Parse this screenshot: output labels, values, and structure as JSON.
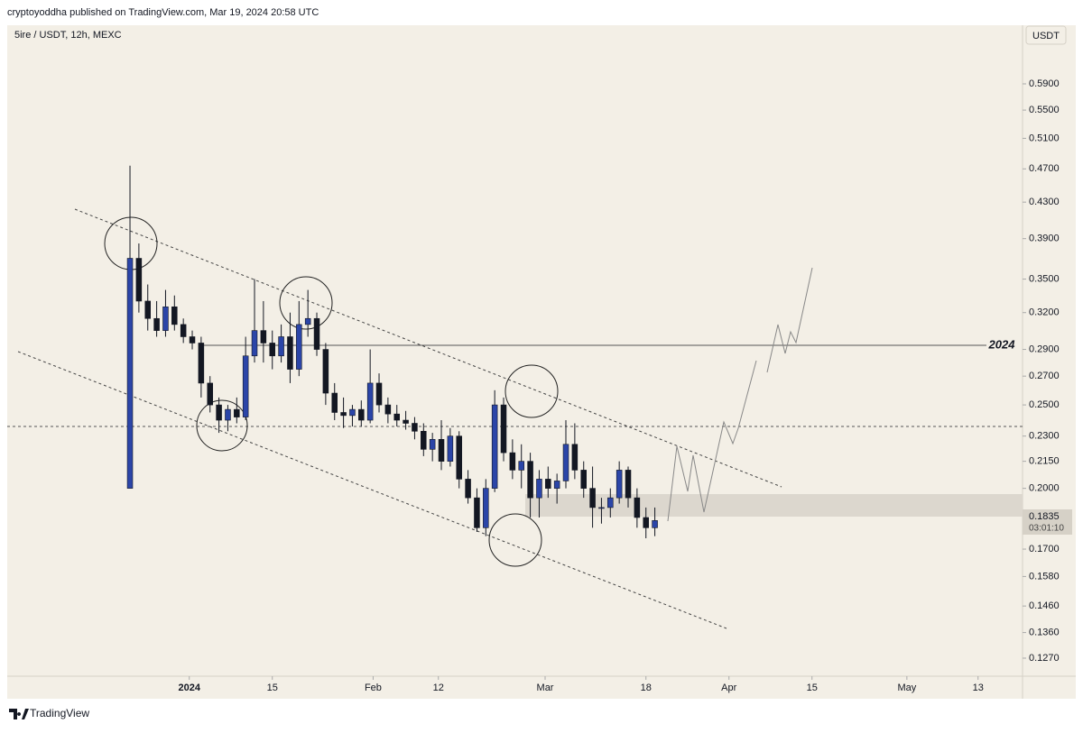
{
  "header": {
    "publisher": "cryptoyoddha published on TradingView.com, Mar 19, 2024 20:58 UTC"
  },
  "footer": {
    "brand": "TradingView"
  },
  "chart_data": {
    "type": "candlestick",
    "symbol": "5ire / USDT, 12h, MEXC",
    "currency": "USDT",
    "log_scale": true,
    "up_color": "#2b45a8",
    "down_color": "#131722",
    "x": [
      -10,
      -8.5,
      -7,
      -5.5,
      -4,
      -2.5,
      -1,
      0.5,
      2,
      3.5,
      5,
      6.5,
      8,
      9.5,
      11,
      12.5,
      14,
      15.5,
      17,
      18.5,
      20,
      21.5,
      23,
      24.5,
      26,
      27.5,
      29,
      30.5,
      32,
      33.5,
      35,
      36.5,
      38,
      39.5,
      41,
      42.5,
      44,
      45.5,
      47,
      48.5,
      50,
      51.5,
      53,
      54.5,
      56,
      57.5,
      59,
      60.5,
      62,
      63.5,
      65,
      66.5,
      68,
      69.5,
      71,
      72.5,
      74,
      75.5,
      77,
      78.5
    ],
    "open": [
      0.2,
      0.37,
      0.33,
      0.315,
      0.305,
      0.325,
      0.31,
      0.3,
      0.295,
      0.265,
      0.25,
      0.24,
      0.247,
      0.242,
      0.285,
      0.305,
      0.295,
      0.285,
      0.3,
      0.275,
      0.31,
      0.315,
      0.29,
      0.258,
      0.245,
      0.243,
      0.247,
      0.24,
      0.265,
      0.25,
      0.244,
      0.24,
      0.238,
      0.233,
      0.222,
      0.228,
      0.215,
      0.23,
      0.205,
      0.195,
      0.18,
      0.2,
      0.25,
      0.22,
      0.21,
      0.215,
      0.195,
      0.205,
      0.2,
      0.204,
      0.225,
      0.21,
      0.2,
      0.19,
      0.19,
      0.195,
      0.21,
      0.195,
      0.185,
      0.18
    ],
    "high": [
      0.474,
      0.385,
      0.345,
      0.33,
      0.34,
      0.335,
      0.315,
      0.305,
      0.3,
      0.27,
      0.255,
      0.25,
      0.255,
      0.3,
      0.35,
      0.33,
      0.305,
      0.31,
      0.32,
      0.33,
      0.34,
      0.32,
      0.295,
      0.265,
      0.255,
      0.25,
      0.253,
      0.29,
      0.272,
      0.255,
      0.25,
      0.246,
      0.242,
      0.238,
      0.232,
      0.24,
      0.235,
      0.233,
      0.21,
      0.2,
      0.205,
      0.26,
      0.255,
      0.228,
      0.225,
      0.22,
      0.21,
      0.212,
      0.208,
      0.24,
      0.238,
      0.215,
      0.212,
      0.195,
      0.2,
      0.215,
      0.212,
      0.2,
      0.19,
      0.19
    ],
    "low": [
      0.2,
      0.32,
      0.305,
      0.3,
      0.3,
      0.305,
      0.295,
      0.29,
      0.255,
      0.245,
      0.232,
      0.233,
      0.238,
      0.24,
      0.28,
      0.28,
      0.275,
      0.28,
      0.265,
      0.27,
      0.3,
      0.285,
      0.25,
      0.24,
      0.235,
      0.236,
      0.236,
      0.238,
      0.245,
      0.238,
      0.236,
      0.234,
      0.228,
      0.218,
      0.215,
      0.21,
      0.212,
      0.2,
      0.192,
      0.178,
      0.176,
      0.198,
      0.215,
      0.205,
      0.2,
      0.185,
      0.185,
      0.195,
      0.192,
      0.2,
      0.205,
      0.195,
      0.18,
      0.182,
      0.185,
      0.192,
      0.19,
      0.18,
      0.175,
      0.176
    ],
    "close": [
      0.37,
      0.33,
      0.315,
      0.305,
      0.325,
      0.31,
      0.3,
      0.295,
      0.265,
      0.25,
      0.24,
      0.247,
      0.242,
      0.285,
      0.305,
      0.295,
      0.285,
      0.3,
      0.275,
      0.31,
      0.315,
      0.29,
      0.258,
      0.245,
      0.243,
      0.247,
      0.24,
      0.265,
      0.25,
      0.244,
      0.24,
      0.238,
      0.233,
      0.222,
      0.228,
      0.215,
      0.23,
      0.205,
      0.195,
      0.18,
      0.2,
      0.25,
      0.22,
      0.21,
      0.215,
      0.195,
      0.205,
      0.2,
      0.204,
      0.225,
      0.21,
      0.2,
      0.19,
      0.19,
      0.195,
      0.21,
      0.195,
      0.185,
      0.18,
      0.1835
    ],
    "xlim": [
      -30.7,
      140.5
    ],
    "xticks": [
      {
        "value": 0,
        "label": "2024"
      },
      {
        "value": 14,
        "label": "15"
      },
      {
        "value": 31,
        "label": "Feb"
      },
      {
        "value": 42,
        "label": "12"
      },
      {
        "value": 60,
        "label": "Mar"
      },
      {
        "value": 77,
        "label": "18"
      },
      {
        "value": 91,
        "label": "Apr"
      },
      {
        "value": 105,
        "label": "15"
      },
      {
        "value": 121,
        "label": "May"
      },
      {
        "value": 133,
        "label": "13"
      }
    ],
    "ylim": [
      0.1216,
      0.6901
    ],
    "yticks": [
      {
        "value": 0.59,
        "label": "0.5900"
      },
      {
        "value": 0.55,
        "label": "0.5500"
      },
      {
        "value": 0.51,
        "label": "0.5100"
      },
      {
        "value": 0.47,
        "label": "0.4700"
      },
      {
        "value": 0.43,
        "label": "0.4300"
      },
      {
        "value": 0.39,
        "label": "0.3900"
      },
      {
        "value": 0.35,
        "label": "0.3500"
      },
      {
        "value": 0.32,
        "label": "0.3200"
      },
      {
        "value": 0.29,
        "label": "0.2900"
      },
      {
        "value": 0.27,
        "label": "0.2700"
      },
      {
        "value": 0.25,
        "label": "0.2500"
      },
      {
        "value": 0.23,
        "label": "0.2300"
      },
      {
        "value": 0.215,
        "label": "0.2150"
      },
      {
        "value": 0.2,
        "label": "0.2000"
      },
      {
        "value": 0.17,
        "label": "0.1700"
      },
      {
        "value": 0.158,
        "label": "0.1580"
      },
      {
        "value": 0.146,
        "label": "0.1460"
      },
      {
        "value": 0.136,
        "label": "0.1360"
      },
      {
        "value": 0.127,
        "label": "0.1270"
      }
    ],
    "last_price": {
      "value": 0.1835,
      "label": "0.1835"
    },
    "countdown": "03:01:10",
    "annotations": [
      {
        "text": "2024"
      }
    ]
  }
}
